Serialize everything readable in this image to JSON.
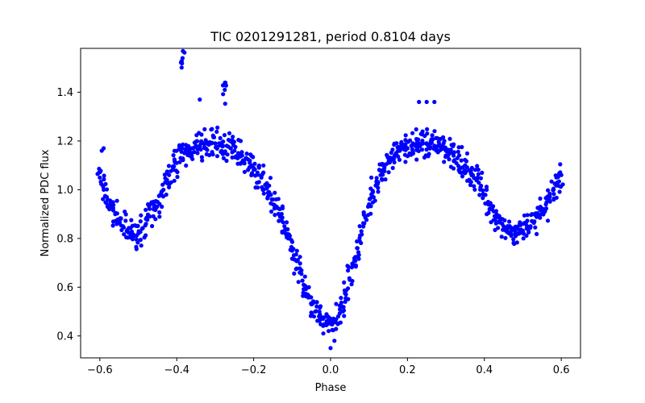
{
  "chart_data": {
    "type": "scatter",
    "title": "TIC 0201291281, period 0.8104 days",
    "xlabel": "Phase",
    "ylabel": "Normalized PDC flux",
    "xlim": [
      -0.65,
      0.65
    ],
    "ylim": [
      0.31,
      1.58
    ],
    "x_ticks": [
      -0.6,
      -0.4,
      -0.2,
      0.0,
      0.2,
      0.4,
      0.6
    ],
    "x_tick_labels": [
      "−0.6",
      "−0.4",
      "−0.2",
      "0.0",
      "0.2",
      "0.4",
      "0.6"
    ],
    "y_ticks": [
      0.4,
      0.6,
      0.8,
      1.0,
      1.2,
      1.4
    ],
    "y_tick_labels": [
      "0.4",
      "0.6",
      "0.8",
      "1.0",
      "1.2",
      "1.4"
    ],
    "grid": false,
    "marker_color": "#0000ff",
    "series": [
      {
        "x": [
          -0.6,
          -0.59,
          -0.58,
          -0.57,
          -0.56,
          -0.55,
          -0.54,
          -0.53,
          -0.52,
          -0.51,
          -0.5,
          -0.49,
          -0.48,
          -0.47,
          -0.46,
          -0.45,
          -0.44,
          -0.43,
          -0.42,
          -0.41,
          -0.4,
          -0.39,
          -0.38,
          -0.37,
          -0.36,
          -0.35,
          -0.34,
          -0.33,
          -0.32,
          -0.31,
          -0.3,
          -0.29,
          -0.28,
          -0.27,
          -0.26,
          -0.25,
          -0.24,
          -0.23,
          -0.22,
          -0.21,
          -0.2,
          -0.19,
          -0.18,
          -0.17,
          -0.16,
          -0.15,
          -0.14,
          -0.13,
          -0.12,
          -0.11,
          -0.1,
          -0.09,
          -0.08,
          -0.07,
          -0.06,
          -0.05,
          -0.04,
          -0.03,
          -0.02,
          -0.01,
          0.0,
          0.01,
          0.02,
          0.03,
          0.04,
          0.05,
          0.06,
          0.07,
          0.08,
          0.09,
          0.1,
          0.11,
          0.12,
          0.13,
          0.14,
          0.15,
          0.16,
          0.17,
          0.18,
          0.19,
          0.2,
          0.21,
          0.22,
          0.23,
          0.24,
          0.25,
          0.26,
          0.27,
          0.28,
          0.29,
          0.3,
          0.31,
          0.32,
          0.33,
          0.34,
          0.35,
          0.36,
          0.37,
          0.38,
          0.39,
          0.4,
          0.41,
          0.42,
          0.43,
          0.44,
          0.45,
          0.46,
          0.47,
          0.48,
          0.49,
          0.5,
          0.51,
          0.52,
          0.53,
          0.54,
          0.55,
          0.56,
          0.57,
          0.58,
          0.59,
          0.6,
          -0.385,
          -0.275,
          -0.34,
          -0.595,
          -0.59,
          0.0,
          -0.005,
          0.01,
          0.23,
          0.25,
          0.27
        ],
        "y": [
          1.05,
          1.0,
          0.96,
          0.93,
          0.9,
          0.87,
          0.85,
          0.83,
          0.82,
          0.81,
          0.82,
          0.84,
          0.86,
          0.89,
          0.92,
          0.95,
          0.99,
          1.03,
          1.06,
          1.09,
          1.11,
          1.13,
          1.15,
          1.16,
          1.17,
          1.18,
          1.18,
          1.19,
          1.19,
          1.19,
          1.19,
          1.19,
          1.18,
          1.18,
          1.17,
          1.16,
          1.15,
          1.14,
          1.13,
          1.11,
          1.09,
          1.07,
          1.05,
          1.02,
          0.99,
          0.96,
          0.93,
          0.89,
          0.85,
          0.8,
          0.75,
          0.71,
          0.66,
          0.61,
          0.57,
          0.53,
          0.5,
          0.48,
          0.47,
          0.46,
          0.45,
          0.46,
          0.48,
          0.52,
          0.57,
          0.63,
          0.69,
          0.76,
          0.83,
          0.89,
          0.94,
          0.99,
          1.03,
          1.06,
          1.09,
          1.11,
          1.13,
          1.15,
          1.16,
          1.17,
          1.17,
          1.18,
          1.18,
          1.19,
          1.19,
          1.19,
          1.19,
          1.18,
          1.18,
          1.17,
          1.16,
          1.15,
          1.14,
          1.13,
          1.12,
          1.1,
          1.08,
          1.06,
          1.04,
          1.01,
          0.98,
          0.95,
          0.92,
          0.89,
          0.87,
          0.85,
          0.84,
          0.83,
          0.82,
          0.82,
          0.83,
          0.84,
          0.85,
          0.87,
          0.89,
          0.91,
          0.94,
          0.97,
          1.0,
          1.03,
          1.06,
          1.54,
          1.41,
          1.37,
          1.16,
          1.17,
          0.35,
          0.42,
          0.38,
          1.36,
          1.36,
          1.36
        ]
      }
    ]
  }
}
